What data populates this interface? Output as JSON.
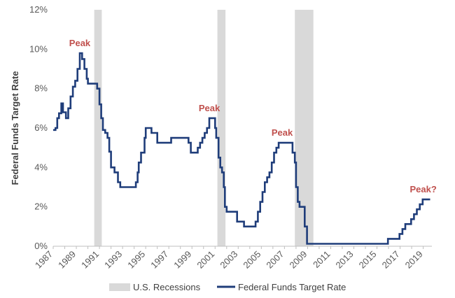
{
  "chart_data": {
    "type": "line",
    "ylabel": "Federal Funds Target Rate",
    "ylim": [
      0,
      12
    ],
    "xlim": [
      1987.0,
      2019.75
    ],
    "y_ticks": [
      "0%",
      "2%",
      "4%",
      "6%",
      "8%",
      "10%",
      "12%"
    ],
    "x_ticks": [
      "1987",
      "1989",
      "1991",
      "1993",
      "1995",
      "1997",
      "1999",
      "2001",
      "2003",
      "2005",
      "2007",
      "2009",
      "2011",
      "2013",
      "2015",
      "2017",
      "2019"
    ],
    "grid": false,
    "legend_position": "bottom",
    "series": [
      {
        "name": "Federal Funds Target Rate",
        "color": "#1f3d7a",
        "points": [
          [
            1987.0,
            5.9
          ],
          [
            1987.2,
            6.0
          ],
          [
            1987.35,
            6.5
          ],
          [
            1987.5,
            6.75
          ],
          [
            1987.7,
            7.25
          ],
          [
            1987.85,
            6.8
          ],
          [
            1988.1,
            6.5
          ],
          [
            1988.3,
            7.0
          ],
          [
            1988.5,
            7.6
          ],
          [
            1988.7,
            8.1
          ],
          [
            1988.9,
            8.4
          ],
          [
            1989.1,
            9.0
          ],
          [
            1989.3,
            9.8
          ],
          [
            1989.5,
            9.5
          ],
          [
            1989.7,
            9.0
          ],
          [
            1989.9,
            8.5
          ],
          [
            1990.0,
            8.25
          ],
          [
            1990.8,
            8.0
          ],
          [
            1991.0,
            7.2
          ],
          [
            1991.15,
            6.5
          ],
          [
            1991.3,
            5.9
          ],
          [
            1991.5,
            5.75
          ],
          [
            1991.7,
            5.5
          ],
          [
            1991.85,
            4.8
          ],
          [
            1992.0,
            4.0
          ],
          [
            1992.3,
            3.75
          ],
          [
            1992.6,
            3.25
          ],
          [
            1992.8,
            3.0
          ],
          [
            1994.0,
            3.0
          ],
          [
            1994.15,
            3.25
          ],
          [
            1994.3,
            3.75
          ],
          [
            1994.4,
            4.25
          ],
          [
            1994.6,
            4.75
          ],
          [
            1994.9,
            5.5
          ],
          [
            1995.0,
            6.0
          ],
          [
            1995.5,
            5.75
          ],
          [
            1996.0,
            5.25
          ],
          [
            1997.2,
            5.5
          ],
          [
            1998.7,
            5.25
          ],
          [
            1998.9,
            4.75
          ],
          [
            1999.5,
            5.0
          ],
          [
            1999.7,
            5.25
          ],
          [
            1999.9,
            5.5
          ],
          [
            2000.1,
            5.75
          ],
          [
            2000.3,
            6.0
          ],
          [
            2000.5,
            6.5
          ],
          [
            2001.0,
            6.0
          ],
          [
            2001.1,
            5.5
          ],
          [
            2001.3,
            4.5
          ],
          [
            2001.45,
            4.0
          ],
          [
            2001.6,
            3.75
          ],
          [
            2001.75,
            3.0
          ],
          [
            2001.85,
            2.0
          ],
          [
            2002.0,
            1.75
          ],
          [
            2002.9,
            1.25
          ],
          [
            2003.5,
            1.0
          ],
          [
            2004.5,
            1.25
          ],
          [
            2004.7,
            1.75
          ],
          [
            2004.9,
            2.25
          ],
          [
            2005.1,
            2.75
          ],
          [
            2005.3,
            3.25
          ],
          [
            2005.5,
            3.5
          ],
          [
            2005.7,
            3.75
          ],
          [
            2005.9,
            4.25
          ],
          [
            2006.1,
            4.75
          ],
          [
            2006.3,
            5.0
          ],
          [
            2006.5,
            5.25
          ],
          [
            2007.7,
            4.75
          ],
          [
            2007.9,
            4.25
          ],
          [
            2008.0,
            3.0
          ],
          [
            2008.15,
            2.25
          ],
          [
            2008.3,
            2.0
          ],
          [
            2008.75,
            1.0
          ],
          [
            2008.95,
            0.125
          ],
          [
            2015.95,
            0.375
          ],
          [
            2016.95,
            0.625
          ],
          [
            2017.2,
            0.875
          ],
          [
            2017.45,
            1.125
          ],
          [
            2017.95,
            1.375
          ],
          [
            2018.2,
            1.625
          ],
          [
            2018.45,
            1.875
          ],
          [
            2018.7,
            2.125
          ],
          [
            2018.95,
            2.375
          ],
          [
            2019.6,
            2.375
          ]
        ]
      }
    ],
    "recessions": {
      "name": "U.S. Recessions",
      "color": "#d9d9d9",
      "periods": [
        [
          1990.55,
          1991.2
        ],
        [
          2001.2,
          2001.9
        ],
        [
          2007.9,
          2009.5
        ]
      ]
    },
    "annotations": [
      {
        "text": "Peak",
        "x": 1989.3,
        "y": 9.8
      },
      {
        "text": "Peak",
        "x": 2000.5,
        "y": 6.5
      },
      {
        "text": "Peak",
        "x": 2006.8,
        "y": 5.25
      },
      {
        "text": "Peak?",
        "x": 2019.0,
        "y": 2.375
      }
    ]
  }
}
